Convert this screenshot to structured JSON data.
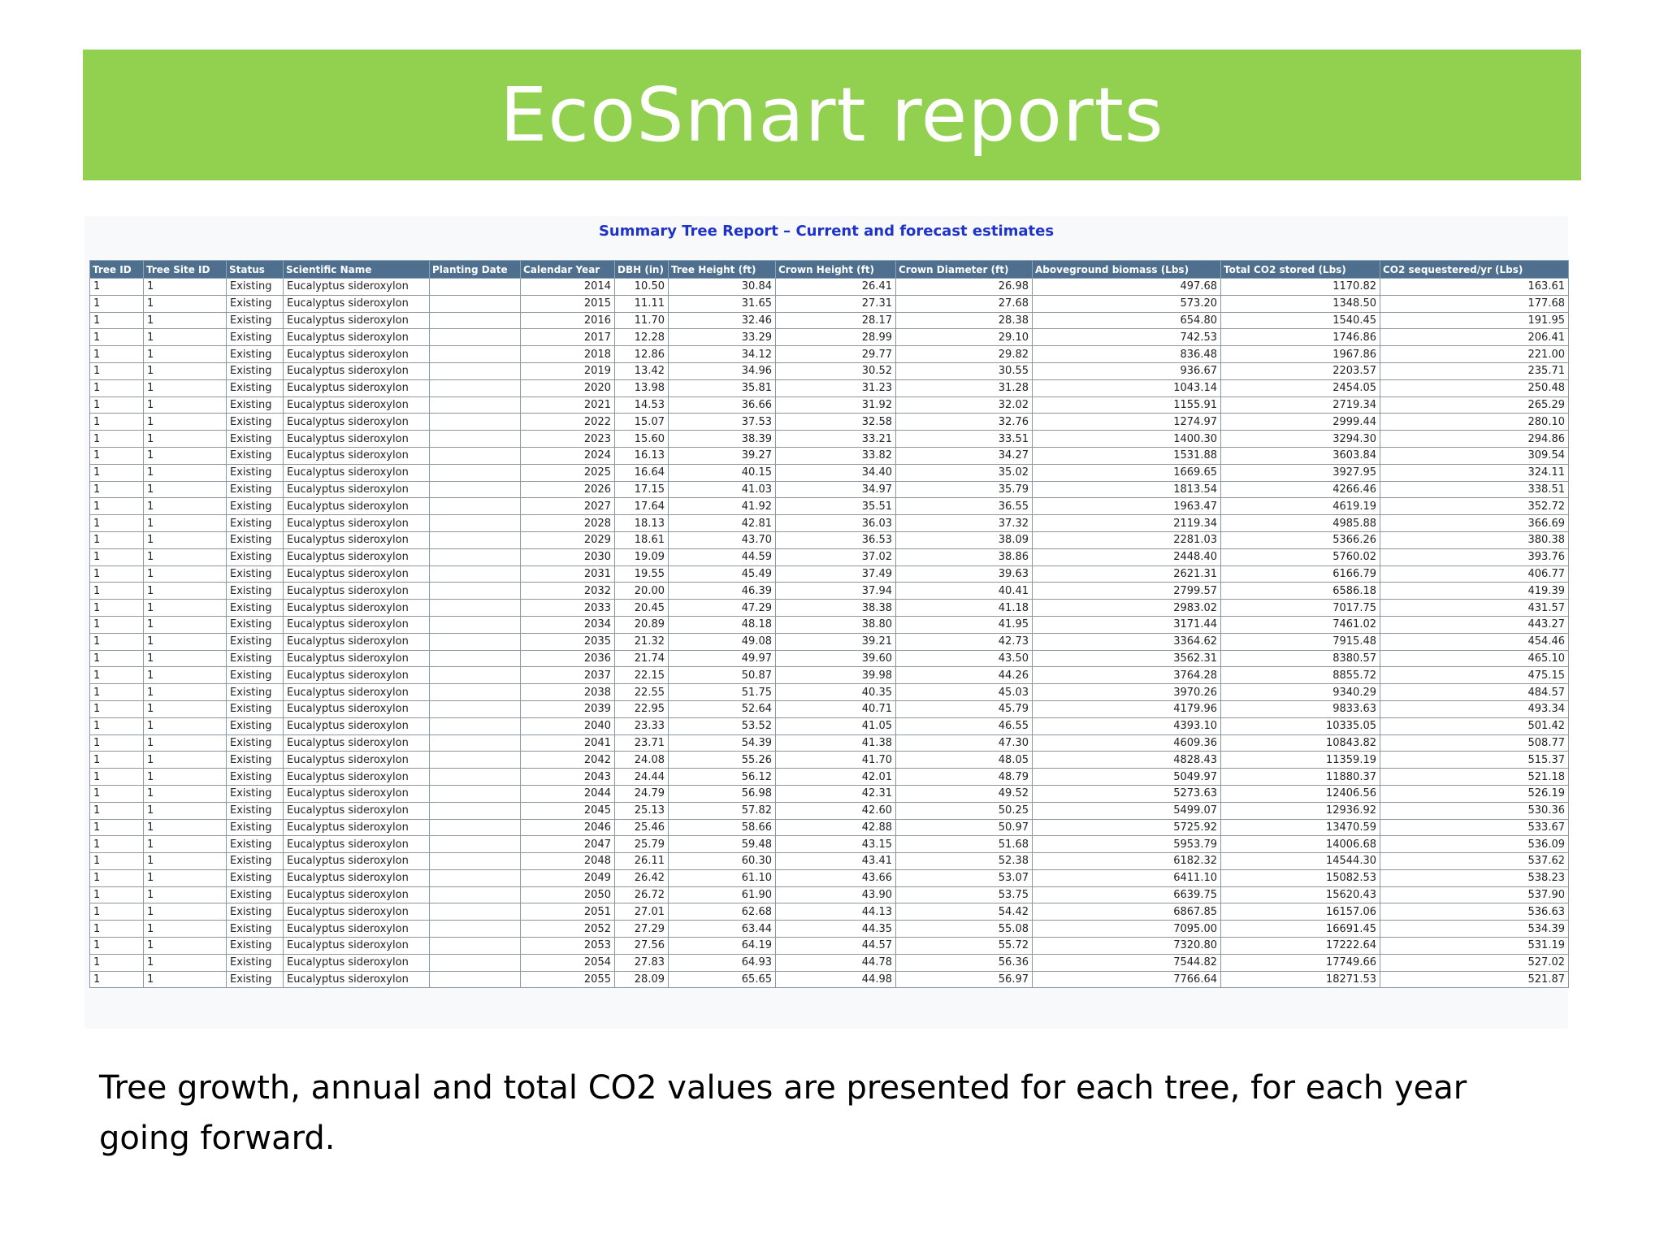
{
  "slide": {
    "title": "EcoSmart reports",
    "caption": "Tree growth, annual and total CO2 values are presented for each tree, for each year going forward."
  },
  "report": {
    "title": "Summary Tree Report – Current and forecast estimates",
    "columns": [
      "Tree ID",
      "Tree Site ID",
      "Status",
      "Scientific Name",
      "Planting Date",
      "Calendar Year",
      "DBH (in)",
      "Tree Height (ft)",
      "Crown Height (ft)",
      "Crown Diameter (ft)",
      "Aboveground biomass (Lbs)",
      "Total CO2 stored (Lbs)",
      "CO2 sequestered/yr (Lbs)"
    ],
    "rows": [
      [
        "1",
        "1",
        "Existing",
        "Eucalyptus sideroxylon",
        "",
        "2014",
        "10.50",
        "30.84",
        "26.41",
        "26.98",
        "497.68",
        "1170.82",
        "163.61"
      ],
      [
        "1",
        "1",
        "Existing",
        "Eucalyptus sideroxylon",
        "",
        "2015",
        "11.11",
        "31.65",
        "27.31",
        "27.68",
        "573.20",
        "1348.50",
        "177.68"
      ],
      [
        "1",
        "1",
        "Existing",
        "Eucalyptus sideroxylon",
        "",
        "2016",
        "11.70",
        "32.46",
        "28.17",
        "28.38",
        "654.80",
        "1540.45",
        "191.95"
      ],
      [
        "1",
        "1",
        "Existing",
        "Eucalyptus sideroxylon",
        "",
        "2017",
        "12.28",
        "33.29",
        "28.99",
        "29.10",
        "742.53",
        "1746.86",
        "206.41"
      ],
      [
        "1",
        "1",
        "Existing",
        "Eucalyptus sideroxylon",
        "",
        "2018",
        "12.86",
        "34.12",
        "29.77",
        "29.82",
        "836.48",
        "1967.86",
        "221.00"
      ],
      [
        "1",
        "1",
        "Existing",
        "Eucalyptus sideroxylon",
        "",
        "2019",
        "13.42",
        "34.96",
        "30.52",
        "30.55",
        "936.67",
        "2203.57",
        "235.71"
      ],
      [
        "1",
        "1",
        "Existing",
        "Eucalyptus sideroxylon",
        "",
        "2020",
        "13.98",
        "35.81",
        "31.23",
        "31.28",
        "1043.14",
        "2454.05",
        "250.48"
      ],
      [
        "1",
        "1",
        "Existing",
        "Eucalyptus sideroxylon",
        "",
        "2021",
        "14.53",
        "36.66",
        "31.92",
        "32.02",
        "1155.91",
        "2719.34",
        "265.29"
      ],
      [
        "1",
        "1",
        "Existing",
        "Eucalyptus sideroxylon",
        "",
        "2022",
        "15.07",
        "37.53",
        "32.58",
        "32.76",
        "1274.97",
        "2999.44",
        "280.10"
      ],
      [
        "1",
        "1",
        "Existing",
        "Eucalyptus sideroxylon",
        "",
        "2023",
        "15.60",
        "38.39",
        "33.21",
        "33.51",
        "1400.30",
        "3294.30",
        "294.86"
      ],
      [
        "1",
        "1",
        "Existing",
        "Eucalyptus sideroxylon",
        "",
        "2024",
        "16.13",
        "39.27",
        "33.82",
        "34.27",
        "1531.88",
        "3603.84",
        "309.54"
      ],
      [
        "1",
        "1",
        "Existing",
        "Eucalyptus sideroxylon",
        "",
        "2025",
        "16.64",
        "40.15",
        "34.40",
        "35.02",
        "1669.65",
        "3927.95",
        "324.11"
      ],
      [
        "1",
        "1",
        "Existing",
        "Eucalyptus sideroxylon",
        "",
        "2026",
        "17.15",
        "41.03",
        "34.97",
        "35.79",
        "1813.54",
        "4266.46",
        "338.51"
      ],
      [
        "1",
        "1",
        "Existing",
        "Eucalyptus sideroxylon",
        "",
        "2027",
        "17.64",
        "41.92",
        "35.51",
        "36.55",
        "1963.47",
        "4619.19",
        "352.72"
      ],
      [
        "1",
        "1",
        "Existing",
        "Eucalyptus sideroxylon",
        "",
        "2028",
        "18.13",
        "42.81",
        "36.03",
        "37.32",
        "2119.34",
        "4985.88",
        "366.69"
      ],
      [
        "1",
        "1",
        "Existing",
        "Eucalyptus sideroxylon",
        "",
        "2029",
        "18.61",
        "43.70",
        "36.53",
        "38.09",
        "2281.03",
        "5366.26",
        "380.38"
      ],
      [
        "1",
        "1",
        "Existing",
        "Eucalyptus sideroxylon",
        "",
        "2030",
        "19.09",
        "44.59",
        "37.02",
        "38.86",
        "2448.40",
        "5760.02",
        "393.76"
      ],
      [
        "1",
        "1",
        "Existing",
        "Eucalyptus sideroxylon",
        "",
        "2031",
        "19.55",
        "45.49",
        "37.49",
        "39.63",
        "2621.31",
        "6166.79",
        "406.77"
      ],
      [
        "1",
        "1",
        "Existing",
        "Eucalyptus sideroxylon",
        "",
        "2032",
        "20.00",
        "46.39",
        "37.94",
        "40.41",
        "2799.57",
        "6586.18",
        "419.39"
      ],
      [
        "1",
        "1",
        "Existing",
        "Eucalyptus sideroxylon",
        "",
        "2033",
        "20.45",
        "47.29",
        "38.38",
        "41.18",
        "2983.02",
        "7017.75",
        "431.57"
      ],
      [
        "1",
        "1",
        "Existing",
        "Eucalyptus sideroxylon",
        "",
        "2034",
        "20.89",
        "48.18",
        "38.80",
        "41.95",
        "3171.44",
        "7461.02",
        "443.27"
      ],
      [
        "1",
        "1",
        "Existing",
        "Eucalyptus sideroxylon",
        "",
        "2035",
        "21.32",
        "49.08",
        "39.21",
        "42.73",
        "3364.62",
        "7915.48",
        "454.46"
      ],
      [
        "1",
        "1",
        "Existing",
        "Eucalyptus sideroxylon",
        "",
        "2036",
        "21.74",
        "49.97",
        "39.60",
        "43.50",
        "3562.31",
        "8380.57",
        "465.10"
      ],
      [
        "1",
        "1",
        "Existing",
        "Eucalyptus sideroxylon",
        "",
        "2037",
        "22.15",
        "50.87",
        "39.98",
        "44.26",
        "3764.28",
        "8855.72",
        "475.15"
      ],
      [
        "1",
        "1",
        "Existing",
        "Eucalyptus sideroxylon",
        "",
        "2038",
        "22.55",
        "51.75",
        "40.35",
        "45.03",
        "3970.26",
        "9340.29",
        "484.57"
      ],
      [
        "1",
        "1",
        "Existing",
        "Eucalyptus sideroxylon",
        "",
        "2039",
        "22.95",
        "52.64",
        "40.71",
        "45.79",
        "4179.96",
        "9833.63",
        "493.34"
      ],
      [
        "1",
        "1",
        "Existing",
        "Eucalyptus sideroxylon",
        "",
        "2040",
        "23.33",
        "53.52",
        "41.05",
        "46.55",
        "4393.10",
        "10335.05",
        "501.42"
      ],
      [
        "1",
        "1",
        "Existing",
        "Eucalyptus sideroxylon",
        "",
        "2041",
        "23.71",
        "54.39",
        "41.38",
        "47.30",
        "4609.36",
        "10843.82",
        "508.77"
      ],
      [
        "1",
        "1",
        "Existing",
        "Eucalyptus sideroxylon",
        "",
        "2042",
        "24.08",
        "55.26",
        "41.70",
        "48.05",
        "4828.43",
        "11359.19",
        "515.37"
      ],
      [
        "1",
        "1",
        "Existing",
        "Eucalyptus sideroxylon",
        "",
        "2043",
        "24.44",
        "56.12",
        "42.01",
        "48.79",
        "5049.97",
        "11880.37",
        "521.18"
      ],
      [
        "1",
        "1",
        "Existing",
        "Eucalyptus sideroxylon",
        "",
        "2044",
        "24.79",
        "56.98",
        "42.31",
        "49.52",
        "5273.63",
        "12406.56",
        "526.19"
      ],
      [
        "1",
        "1",
        "Existing",
        "Eucalyptus sideroxylon",
        "",
        "2045",
        "25.13",
        "57.82",
        "42.60",
        "50.25",
        "5499.07",
        "12936.92",
        "530.36"
      ],
      [
        "1",
        "1",
        "Existing",
        "Eucalyptus sideroxylon",
        "",
        "2046",
        "25.46",
        "58.66",
        "42.88",
        "50.97",
        "5725.92",
        "13470.59",
        "533.67"
      ],
      [
        "1",
        "1",
        "Existing",
        "Eucalyptus sideroxylon",
        "",
        "2047",
        "25.79",
        "59.48",
        "43.15",
        "51.68",
        "5953.79",
        "14006.68",
        "536.09"
      ],
      [
        "1",
        "1",
        "Existing",
        "Eucalyptus sideroxylon",
        "",
        "2048",
        "26.11",
        "60.30",
        "43.41",
        "52.38",
        "6182.32",
        "14544.30",
        "537.62"
      ],
      [
        "1",
        "1",
        "Existing",
        "Eucalyptus sideroxylon",
        "",
        "2049",
        "26.42",
        "61.10",
        "43.66",
        "53.07",
        "6411.10",
        "15082.53",
        "538.23"
      ],
      [
        "1",
        "1",
        "Existing",
        "Eucalyptus sideroxylon",
        "",
        "2050",
        "26.72",
        "61.90",
        "43.90",
        "53.75",
        "6639.75",
        "15620.43",
        "537.90"
      ],
      [
        "1",
        "1",
        "Existing",
        "Eucalyptus sideroxylon",
        "",
        "2051",
        "27.01",
        "62.68",
        "44.13",
        "54.42",
        "6867.85",
        "16157.06",
        "536.63"
      ],
      [
        "1",
        "1",
        "Existing",
        "Eucalyptus sideroxylon",
        "",
        "2052",
        "27.29",
        "63.44",
        "44.35",
        "55.08",
        "7095.00",
        "16691.45",
        "534.39"
      ],
      [
        "1",
        "1",
        "Existing",
        "Eucalyptus sideroxylon",
        "",
        "2053",
        "27.56",
        "64.19",
        "44.57",
        "55.72",
        "7320.80",
        "17222.64",
        "531.19"
      ],
      [
        "1",
        "1",
        "Existing",
        "Eucalyptus sideroxylon",
        "",
        "2054",
        "27.83",
        "64.93",
        "44.78",
        "56.36",
        "7544.82",
        "17749.66",
        "527.02"
      ],
      [
        "1",
        "1",
        "Existing",
        "Eucalyptus sideroxylon",
        "",
        "2055",
        "28.09",
        "65.65",
        "44.98",
        "56.97",
        "7766.64",
        "18271.53",
        "521.87"
      ]
    ]
  }
}
